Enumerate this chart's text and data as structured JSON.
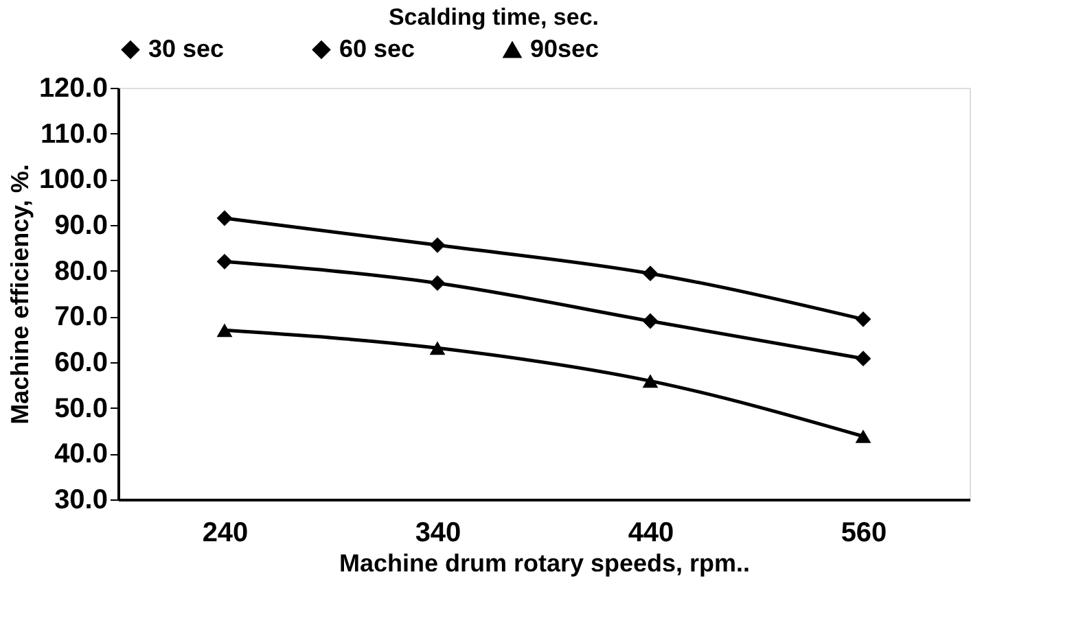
{
  "chart_data": {
    "type": "line",
    "xlabel": "Machine drum rotary speeds, rpm..",
    "ylabel": "Machine efficiency, %.",
    "legend_title": "Scalding time, sec.",
    "categories": [
      "240",
      "340",
      "440",
      "560"
    ],
    "series": [
      {
        "name": "30 sec",
        "color": "#000000",
        "marker": "diamond",
        "values": [
          91.5,
          85.6,
          79.4,
          69.4
        ]
      },
      {
        "name": "60 sec",
        "color": "#000000",
        "marker": "diamond",
        "values": [
          82.0,
          77.3,
          69.0,
          60.8
        ]
      },
      {
        "name": "90sec",
        "color": "#000000",
        "marker": "triangle",
        "values": [
          67.0,
          63.1,
          55.9,
          43.8
        ]
      }
    ],
    "ylim": [
      30,
      120
    ],
    "yticks": [
      {
        "value": 30,
        "label": "30.0"
      },
      {
        "value": 40,
        "label": "40.0"
      },
      {
        "value": 50,
        "label": "50.0"
      },
      {
        "value": 60,
        "label": "60.0"
      },
      {
        "value": 70,
        "label": "70.0"
      },
      {
        "value": 80,
        "label": "80.0"
      },
      {
        "value": 90,
        "label": "90.0"
      },
      {
        "value": 100,
        "label": "100.0"
      },
      {
        "value": 110,
        "label": "110.0"
      },
      {
        "value": 120,
        "label": "120.0"
      }
    ],
    "grid": false,
    "legend": "top",
    "line_style": "solid"
  }
}
